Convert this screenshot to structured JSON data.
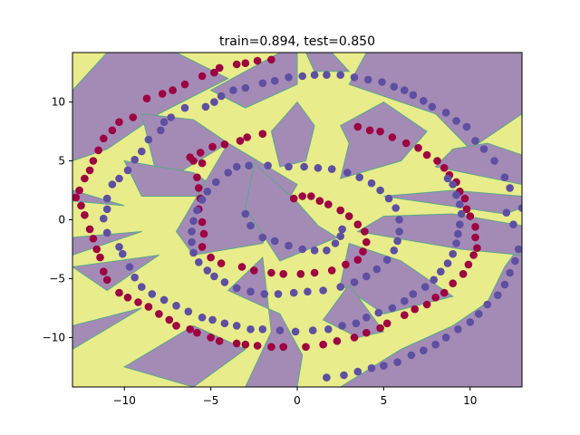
{
  "chart_data": {
    "type": "scatter",
    "title": "train=0.894, test=0.850",
    "xlabel": "",
    "ylabel": "",
    "xlim": [
      -13,
      13
    ],
    "ylim": [
      -14.2,
      14.2
    ],
    "xticks": [
      -10,
      -5,
      0,
      5,
      10
    ],
    "yticks": [
      -10,
      -5,
      0,
      5,
      10
    ],
    "xtick_labels": [
      "−10",
      "−5",
      "0",
      "5",
      "10"
    ],
    "ytick_labels": [
      "−10",
      "−5",
      "0",
      "5",
      "10"
    ],
    "grid": false,
    "legend": "none",
    "background": {
      "type": "decision-regions",
      "description_colors": {
        "class_a": "#a38bb5",
        "class_b": "#e8ec8a",
        "boundary": "#5aa88a"
      }
    },
    "series": [
      {
        "color": "#9e0142",
        "points": [
          [
            -5.5,
            12.2
          ],
          [
            -4.8,
            12.5
          ],
          [
            -4.5,
            12.9
          ],
          [
            -3.5,
            13.2
          ],
          [
            -3.0,
            13.3
          ],
          [
            -2.3,
            13.5
          ],
          [
            -1.5,
            13.6
          ],
          [
            -6.5,
            11.5
          ],
          [
            -7.2,
            11.0
          ],
          [
            -7.8,
            10.7
          ],
          [
            -8.7,
            10.3
          ],
          [
            -9.5,
            8.7
          ],
          [
            -10.3,
            8.3
          ],
          [
            -10.7,
            7.6
          ],
          [
            -11.2,
            6.9
          ],
          [
            -11.5,
            5.9
          ],
          [
            -11.8,
            5.0
          ],
          [
            -12.0,
            4.2
          ],
          [
            -12.3,
            3.5
          ],
          [
            -12.6,
            2.5
          ],
          [
            -12.8,
            1.9
          ],
          [
            -12.5,
            1.2
          ],
          [
            -12.3,
            0.4
          ],
          [
            -12.0,
            -0.8
          ],
          [
            -11.8,
            -1.6
          ],
          [
            -11.6,
            -2.5
          ],
          [
            -11.4,
            -3.2
          ],
          [
            -11.2,
            -4.4
          ],
          [
            -11.0,
            -5.1
          ],
          [
            -10.3,
            -6.2
          ],
          [
            -9.8,
            -6.6
          ],
          [
            -9.2,
            -7.0
          ],
          [
            -8.6,
            -7.4
          ],
          [
            -8.0,
            -8.0
          ],
          [
            -7.4,
            -8.5
          ],
          [
            -7.0,
            -9.0
          ],
          [
            -6.2,
            -9.3
          ],
          [
            -5.8,
            -9.6
          ],
          [
            -5.0,
            -10.0
          ],
          [
            -4.5,
            -10.3
          ],
          [
            -3.5,
            -10.5
          ],
          [
            -3.0,
            -10.6
          ],
          [
            -2.3,
            -10.7
          ],
          [
            -1.5,
            -10.8
          ],
          [
            -0.8,
            -10.8
          ],
          [
            0.5,
            -10.8
          ],
          [
            1.5,
            -10.6
          ],
          [
            2.3,
            -10.3
          ],
          [
            3.3,
            -10.0
          ],
          [
            4.0,
            -9.6
          ],
          [
            4.8,
            -9.2
          ],
          [
            5.2,
            -8.8
          ],
          [
            6.2,
            -8.1
          ],
          [
            6.8,
            -7.6
          ],
          [
            7.5,
            -7.2
          ],
          [
            8.0,
            -6.6
          ],
          [
            8.5,
            -6.2
          ],
          [
            9.0,
            -5.4
          ],
          [
            9.6,
            -4.6
          ],
          [
            9.9,
            -3.8
          ],
          [
            10.2,
            -3.0
          ],
          [
            10.4,
            -2.4
          ],
          [
            10.3,
            -1.5
          ],
          [
            10.3,
            -0.6
          ],
          [
            10.0,
            0.3
          ],
          [
            9.8,
            0.9
          ],
          [
            9.7,
            1.8
          ],
          [
            9.4,
            2.4
          ],
          [
            9.2,
            3.2
          ],
          [
            8.8,
            3.8
          ],
          [
            8.5,
            4.4
          ],
          [
            8.1,
            5.0
          ],
          [
            7.5,
            5.5
          ],
          [
            7.0,
            6.1
          ],
          [
            6.3,
            6.5
          ],
          [
            5.5,
            7.0
          ],
          [
            4.8,
            7.5
          ],
          [
            4.2,
            7.6
          ],
          [
            3.5,
            7.9
          ],
          [
            -6.0,
            5.0
          ],
          [
            -5.5,
            4.8
          ],
          [
            -5.8,
            3.6
          ],
          [
            -5.7,
            2.7
          ],
          [
            -5.6,
            1.8
          ],
          [
            -5.7,
            0.9
          ],
          [
            -5.5,
            -0.2
          ],
          [
            -5.4,
            -1.2
          ],
          [
            -5.5,
            -2.3
          ],
          [
            -5.0,
            -3.2
          ],
          [
            -4.4,
            -3.7
          ],
          [
            -3.2,
            -4.0
          ],
          [
            -2.5,
            -4.3
          ],
          [
            -1.5,
            -4.5
          ],
          [
            -0.8,
            -4.6
          ],
          [
            0.2,
            -4.6
          ],
          [
            1.0,
            -4.5
          ],
          [
            2.0,
            -4.3
          ],
          [
            2.8,
            -3.8
          ],
          [
            3.5,
            -3.4
          ],
          [
            3.8,
            -2.7
          ],
          [
            4.0,
            -1.9
          ],
          [
            3.9,
            -1.0
          ],
          [
            3.5,
            -0.4
          ],
          [
            3.0,
            0.3
          ],
          [
            2.5,
            0.8
          ],
          [
            1.8,
            1.3
          ],
          [
            1.3,
            1.6
          ],
          [
            0.8,
            2.0
          ],
          [
            0.3,
            2.0
          ],
          [
            -0.2,
            1.8
          ],
          [
            -2.0,
            7.3
          ],
          [
            -2.9,
            7.0
          ],
          [
            -3.3,
            6.7
          ],
          [
            -4.2,
            6.4
          ],
          [
            -4.9,
            6.2
          ],
          [
            -5.6,
            5.7
          ],
          [
            -6.2,
            5.3
          ]
        ]
      },
      {
        "color": "#5e4fa2",
        "points": [
          [
            -5.3,
            9.6
          ],
          [
            -4.8,
            10.0
          ],
          [
            -4.4,
            10.5
          ],
          [
            -3.7,
            11.0
          ],
          [
            -3.0,
            11.2
          ],
          [
            -2.0,
            11.6
          ],
          [
            -1.3,
            11.8
          ],
          [
            -0.5,
            12.1
          ],
          [
            0.3,
            12.2
          ],
          [
            1.0,
            12.3
          ],
          [
            1.7,
            12.3
          ],
          [
            2.5,
            12.3
          ],
          [
            3.3,
            12.1
          ],
          [
            4.1,
            11.9
          ],
          [
            4.9,
            11.7
          ],
          [
            5.6,
            11.3
          ],
          [
            6.2,
            11.0
          ],
          [
            6.7,
            10.6
          ],
          [
            7.3,
            10.1
          ],
          [
            7.8,
            9.6
          ],
          [
            8.6,
            9.1
          ],
          [
            9.2,
            8.4
          ],
          [
            9.8,
            7.9
          ],
          [
            -6.5,
            9.5
          ],
          [
            -7.3,
            8.7
          ],
          [
            -7.7,
            8.3
          ],
          [
            -7.9,
            7.6
          ],
          [
            -8.6,
            6.8
          ],
          [
            -9.0,
            5.8
          ],
          [
            -9.4,
            5.1
          ],
          [
            -9.8,
            4.2
          ],
          [
            -10.3,
            3.5
          ],
          [
            -10.7,
            3.0
          ],
          [
            -11.0,
            1.8
          ],
          [
            -11.0,
            0.9
          ],
          [
            -11.2,
            0.1
          ],
          [
            -11.0,
            -1.1
          ],
          [
            -10.3,
            -2.3
          ],
          [
            -10.1,
            -2.9
          ],
          [
            -9.7,
            -4.0
          ],
          [
            -9.4,
            -4.9
          ],
          [
            -9.0,
            -5.7
          ],
          [
            -8.4,
            -6.3
          ],
          [
            -7.7,
            -6.8
          ],
          [
            -7.0,
            -7.3
          ],
          [
            -6.3,
            -7.8
          ],
          [
            -5.5,
            -8.3
          ],
          [
            -4.9,
            -8.5
          ],
          [
            -4.2,
            -8.8
          ],
          [
            -3.5,
            -9.0
          ],
          [
            -2.7,
            -9.3
          ],
          [
            -2.0,
            -9.3
          ],
          [
            -1.0,
            -9.4
          ],
          [
            -0.1,
            -9.5
          ],
          [
            0.9,
            -9.4
          ],
          [
            1.8,
            -9.3
          ],
          [
            2.6,
            -9.0
          ],
          [
            3.4,
            -8.8
          ],
          [
            4.0,
            -8.3
          ],
          [
            4.7,
            -7.9
          ],
          [
            5.5,
            -7.5
          ],
          [
            6.2,
            -6.9
          ],
          [
            6.7,
            -6.3
          ],
          [
            7.4,
            -5.7
          ],
          [
            7.9,
            -5.1
          ],
          [
            8.3,
            -4.4
          ],
          [
            8.7,
            -3.7
          ],
          [
            9.0,
            -2.9
          ],
          [
            9.2,
            -2.0
          ],
          [
            9.3,
            -1.2
          ],
          [
            9.4,
            -0.4
          ],
          [
            9.5,
            0.5
          ],
          [
            9.4,
            1.3
          ],
          [
            9.2,
            2.1
          ],
          [
            9.0,
            3.0
          ],
          [
            8.7,
            3.5
          ],
          [
            12.1,
            0.6
          ],
          [
            12.5,
            -0.4
          ],
          [
            12.8,
            -2.5
          ],
          [
            12.6,
            -3.5
          ],
          [
            12.3,
            -4.5
          ],
          [
            12.0,
            -5.5
          ],
          [
            11.6,
            -6.4
          ],
          [
            11.0,
            -7.2
          ],
          [
            10.5,
            -8.0
          ],
          [
            10.0,
            -8.7
          ],
          [
            9.3,
            -9.3
          ],
          [
            8.6,
            -10.0
          ],
          [
            8.0,
            -10.6
          ],
          [
            7.3,
            -11.1
          ],
          [
            6.6,
            -11.5
          ],
          [
            5.8,
            -12.1
          ],
          [
            5.0,
            -12.4
          ],
          [
            4.3,
            -12.6
          ],
          [
            3.5,
            -12.9
          ],
          [
            2.7,
            -13.2
          ],
          [
            1.7,
            -13.4
          ],
          [
            13.0,
            1.0
          ],
          [
            12.3,
            2.7
          ],
          [
            12.0,
            3.6
          ],
          [
            11.4,
            5.0
          ],
          [
            10.8,
            6.0
          ],
          [
            10.3,
            6.7
          ],
          [
            -3.0,
            0.5
          ],
          [
            -2.7,
            -0.5
          ],
          [
            -2.0,
            -1.5
          ],
          [
            -1.3,
            -1.8
          ],
          [
            -0.5,
            -2.2
          ],
          [
            0.3,
            -2.5
          ],
          [
            1.0,
            -2.6
          ],
          [
            1.7,
            -2.6
          ],
          [
            2.2,
            -2.0
          ],
          [
            2.5,
            -1.4
          ],
          [
            2.6,
            -0.8
          ],
          [
            -4.0,
            4.0
          ],
          [
            -3.5,
            4.5
          ],
          [
            -2.8,
            4.6
          ],
          [
            -1.7,
            4.6
          ],
          [
            -0.5,
            4.5
          ],
          [
            0.4,
            4.5
          ],
          [
            1.2,
            4.4
          ],
          [
            2.0,
            4.3
          ],
          [
            2.9,
            4.0
          ],
          [
            3.6,
            3.6
          ],
          [
            4.3,
            3.1
          ],
          [
            4.8,
            2.5
          ],
          [
            5.3,
            1.8
          ],
          [
            5.7,
            1.0
          ],
          [
            5.9,
            0.0
          ],
          [
            5.9,
            -1.0
          ],
          [
            5.8,
            -1.8
          ],
          [
            5.6,
            -2.6
          ],
          [
            5.2,
            -3.4
          ],
          [
            4.6,
            -4.2
          ],
          [
            4.0,
            -4.8
          ],
          [
            3.3,
            -5.3
          ],
          [
            2.5,
            -5.7
          ],
          [
            1.5,
            -6.0
          ],
          [
            0.6,
            -6.1
          ],
          [
            -0.2,
            -6.2
          ],
          [
            -1.1,
            -6.3
          ],
          [
            -1.9,
            -6.3
          ],
          [
            -2.7,
            -6.1
          ],
          [
            -3.5,
            -5.8
          ],
          [
            -4.2,
            -5.3
          ],
          [
            -4.8,
            -4.8
          ],
          [
            -5.2,
            -4.3
          ],
          [
            -5.7,
            -3.6
          ],
          [
            -6.0,
            -2.8
          ],
          [
            -6.1,
            -1.9
          ],
          [
            -6.1,
            -1.0
          ],
          [
            -6.0,
            -0.1
          ],
          [
            -5.8,
            0.8
          ],
          [
            -5.5,
            1.7
          ],
          [
            -5.2,
            2.4
          ],
          [
            -4.7,
            3.2
          ]
        ]
      }
    ]
  }
}
